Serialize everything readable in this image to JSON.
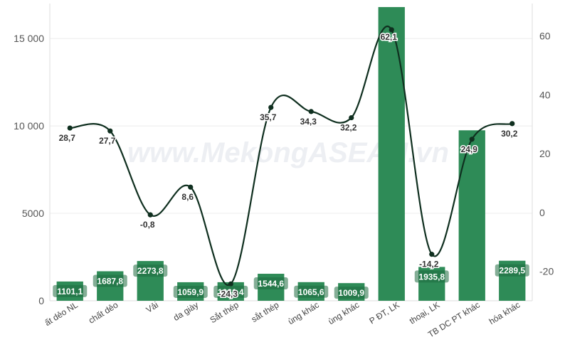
{
  "chart_data": {
    "type": "bar",
    "watermark": "www.MekongASEAN.vn",
    "categories": [
      "ất dẻo NL",
      "chất dẻo",
      "Vải",
      "da giày",
      "Sắt thép",
      "sắt thép",
      "ùng khác",
      "ùng khác",
      "P ĐT, LK",
      "thoại, LK",
      "TB DC PT khác",
      "hóa khác"
    ],
    "series": [
      {
        "chart": "bar",
        "axis": "left",
        "color": "#2e8b57",
        "values": [
          1101.1,
          1687.8,
          2273.8,
          1059.9,
          1061.4,
          1544.6,
          1065.6,
          1009.9,
          16800,
          1935.8,
          9750,
          2289.5
        ],
        "labels": [
          "1101,1",
          "1687,8",
          "2273,8",
          "1059,9",
          "1061,4",
          "1544,6",
          "1065,6",
          "1009,9",
          "",
          "1935,8",
          "",
          "2289,5"
        ]
      },
      {
        "chart": "line",
        "axis": "right",
        "color": "#0f2f1f",
        "values": [
          28.7,
          27.7,
          -0.8,
          8.6,
          -24.3,
          35.7,
          34.3,
          32.2,
          62.1,
          -14.2,
          24.9,
          30.2
        ],
        "labels": [
          "28,7",
          "27,7",
          "-0,8",
          "8,6",
          "-24,3",
          "35,7",
          "34,3",
          "32,2",
          "62,1",
          "-14,2",
          "24,9",
          "30,2"
        ]
      }
    ],
    "y_left": {
      "min": 0,
      "max": 17000,
      "ticks": [
        0,
        5000,
        10000,
        15000
      ],
      "tick_labels": [
        "0",
        "5000",
        "10 000",
        "15 000"
      ]
    },
    "y_right": {
      "min": -30,
      "max": 71,
      "ticks": [
        -20,
        0,
        20,
        40,
        60
      ],
      "tick_labels": [
        "-20",
        "0",
        "20",
        "40",
        "60"
      ]
    },
    "grid": true
  }
}
